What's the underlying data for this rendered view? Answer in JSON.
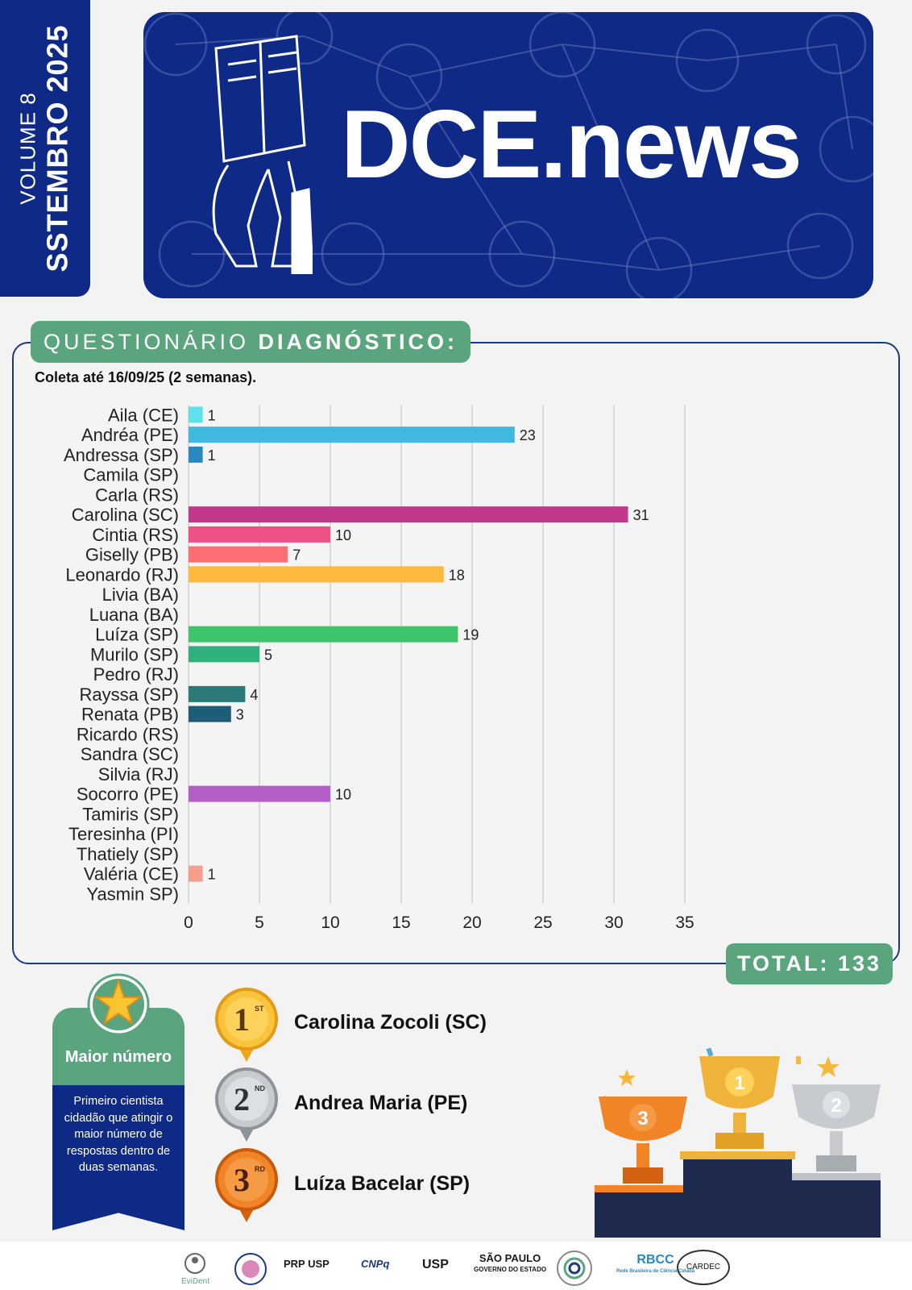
{
  "volume": {
    "line1": "VOLUME 8",
    "line2": "SSTEMBRO 2025"
  },
  "header": {
    "brand": "DCE.news"
  },
  "section": {
    "title_light": "QUESTIONÁRIO ",
    "title_bold": "DIAGNÓSTICO:",
    "subtitle": "Coleta até 16/09/25 (2 semanas)."
  },
  "chart_data": {
    "type": "bar",
    "orientation": "horizontal",
    "categories": [
      "Aila (CE)",
      "Andréa (PE)",
      "Andressa (SP)",
      "Camila (SP)",
      "Carla (RS)",
      "Carolina (SC)",
      "Cintia (RS)",
      "Giselly (PB)",
      "Leonardo (RJ)",
      "Livia (BA)",
      "Luana (BA)",
      "Luíza (SP)",
      "Murilo (SP)",
      "Pedro (RJ)",
      "Rayssa (SP)",
      "Renata (PB)",
      "Ricardo (RS)",
      "Sandra (SC)",
      "Silvia (RJ)",
      "Socorro (PE)",
      "Tamiris (SP)",
      "Teresinha (PI)",
      "Thatiely (SP)",
      "Valéria (CE)",
      "Yasmin SP)"
    ],
    "values": [
      1,
      23,
      1,
      null,
      null,
      31,
      10,
      7,
      18,
      null,
      null,
      19,
      5,
      null,
      4,
      3,
      null,
      null,
      null,
      10,
      null,
      null,
      null,
      1,
      null
    ],
    "colors": [
      "#5fe1ea",
      "#41b8dd",
      "#2a88c0",
      null,
      null,
      "#c2398c",
      "#ee4f84",
      "#fb6e72",
      "#fdb93d",
      null,
      null,
      "#3ec46d",
      "#2fb07c",
      null,
      "#2a7a78",
      "#1e5d78",
      null,
      null,
      null,
      "#b45ec9",
      null,
      null,
      null,
      "#f59e8e",
      null
    ],
    "xlim": [
      0,
      35
    ],
    "xticks": [
      0,
      5,
      10,
      15,
      20,
      25,
      30,
      35
    ],
    "grid": true
  },
  "total": "TOTAL: 133",
  "ribbon": {
    "title": "Maior número",
    "text": "Primeiro cientista cidadão que atingir o maior número de respostas dentro de duas semanas."
  },
  "ranking": [
    {
      "place": "1",
      "suffix": "ST",
      "name": "Carolina Zocoli (SC)"
    },
    {
      "place": "2",
      "suffix": "ND",
      "name": "Andrea Maria (PE)"
    },
    {
      "place": "3",
      "suffix": "RD",
      "name": "Luíza Bacelar (SP)"
    }
  ],
  "podium": {
    "first": "1",
    "second": "2",
    "third": "3"
  },
  "footer_logos": [
    "EviDent",
    "PRP USP",
    "CNPq",
    "USP",
    "SÃO PAULO",
    "GOVERNO DO ESTADO",
    "RBCC",
    "Rede Brasileira de Ciência Cidadã",
    "CARDEC"
  ]
}
